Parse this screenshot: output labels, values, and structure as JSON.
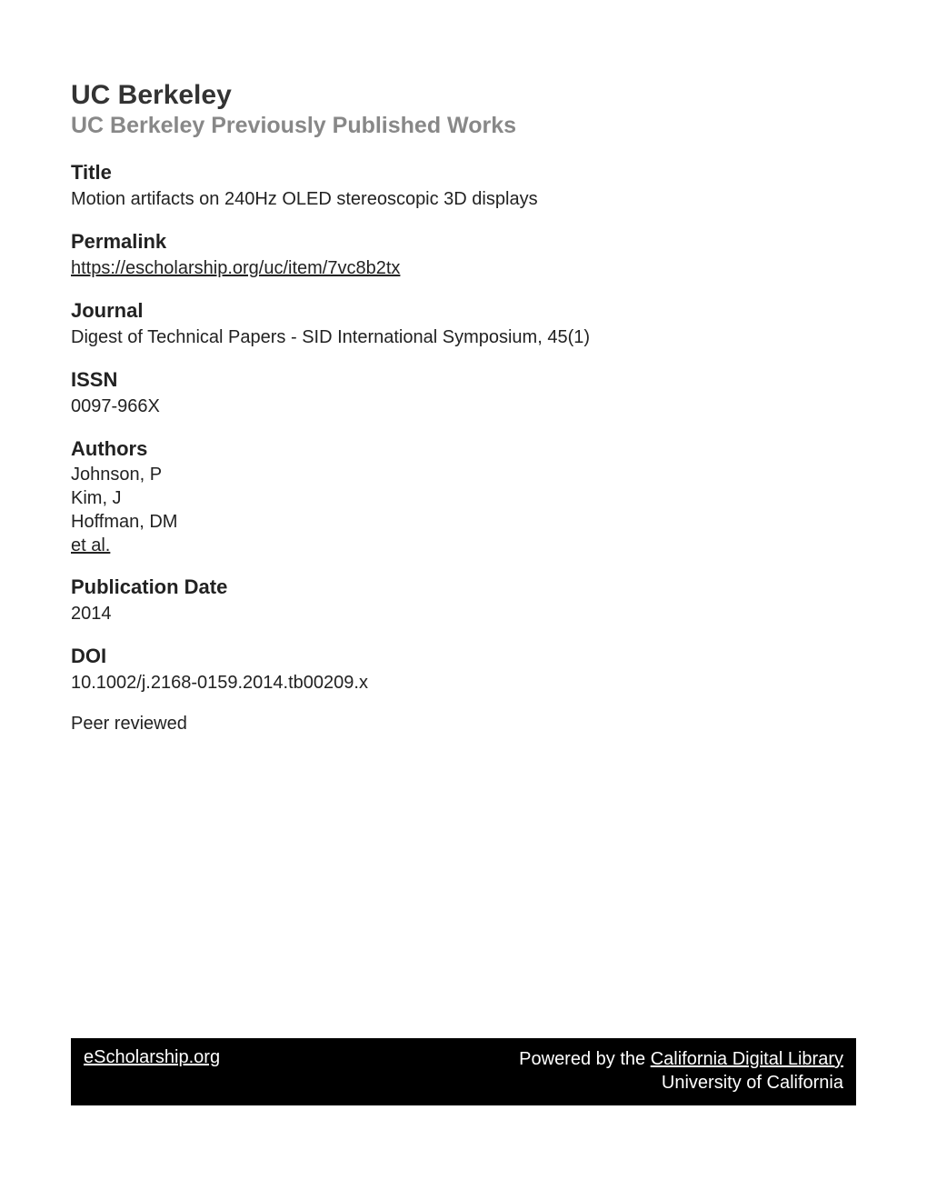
{
  "header": {
    "main_title": "UC Berkeley",
    "subtitle": "UC Berkeley Previously Published Works"
  },
  "sections": {
    "title": {
      "label": "Title",
      "value": "Motion artifacts on 240Hz OLED stereoscopic 3D displays"
    },
    "permalink": {
      "label": "Permalink",
      "value": "https://escholarship.org/uc/item/7vc8b2tx"
    },
    "journal": {
      "label": "Journal",
      "value": "Digest of Technical Papers - SID International Symposium, 45(1)"
    },
    "issn": {
      "label": "ISSN",
      "value": "0097-966X"
    },
    "authors": {
      "label": "Authors",
      "list": [
        "Johnson, P",
        "Kim, J",
        "Hoffman, DM"
      ],
      "more": "et al."
    },
    "pubdate": {
      "label": "Publication Date",
      "value": "2014"
    },
    "doi": {
      "label": "DOI",
      "value": "10.1002/j.2168-0159.2014.tb00209.x"
    }
  },
  "peer_reviewed": "Peer reviewed",
  "footer": {
    "left_link": "eScholarship.org",
    "powered_by": "Powered by the ",
    "cdl_link": "California Digital Library",
    "uc": "University of California"
  }
}
